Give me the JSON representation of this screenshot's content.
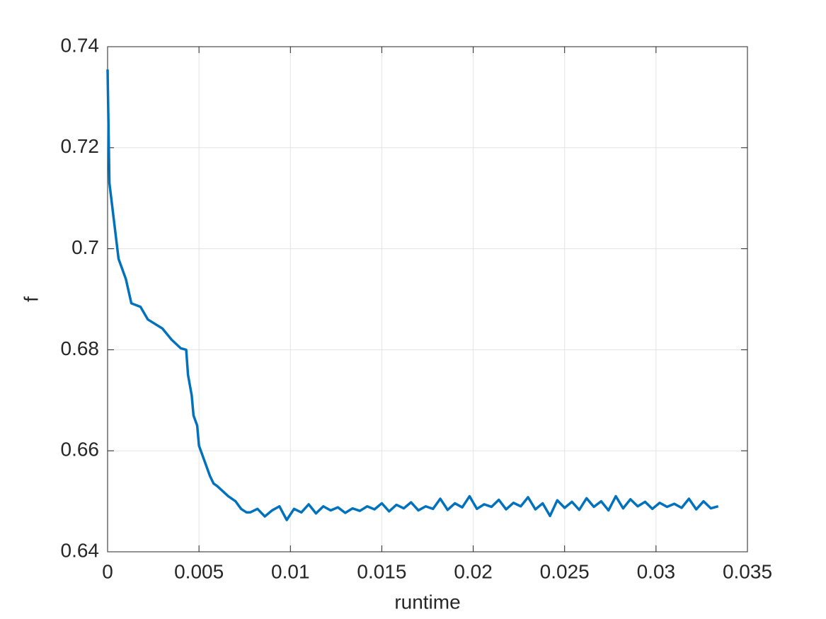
{
  "chart_data": {
    "type": "line",
    "xlabel": "runtime",
    "ylabel": "f",
    "x": [
      0,
      0.0001,
      0.0002,
      0.0006,
      0.001,
      0.0013,
      0.0018,
      0.0022,
      0.003,
      0.0035,
      0.004,
      0.0043,
      0.0044,
      0.0046,
      0.0047,
      0.0049,
      0.005,
      0.0052,
      0.0054,
      0.0056,
      0.0058,
      0.006,
      0.0063,
      0.0066,
      0.007,
      0.0073,
      0.0076,
      0.0078,
      0.0082,
      0.0086,
      0.009,
      0.0094,
      0.0098,
      0.0102,
      0.0106,
      0.011,
      0.0114,
      0.0118,
      0.0122,
      0.0126,
      0.013,
      0.0134,
      0.0138,
      0.0142,
      0.0146,
      0.015,
      0.0154,
      0.0158,
      0.0162,
      0.0166,
      0.017,
      0.0174,
      0.0178,
      0.0182,
      0.0186,
      0.019,
      0.0194,
      0.0198,
      0.0202,
      0.0206,
      0.021,
      0.0214,
      0.0218,
      0.0222,
      0.0226,
      0.023,
      0.0234,
      0.0238,
      0.0242,
      0.0246,
      0.025,
      0.0254,
      0.0258,
      0.0262,
      0.0266,
      0.027,
      0.0274,
      0.0278,
      0.0282,
      0.0286,
      0.029,
      0.0294,
      0.0298,
      0.0302,
      0.0306,
      0.031,
      0.0314,
      0.0318,
      0.0322,
      0.0326,
      0.033,
      0.0334
    ],
    "series": [
      {
        "color": "#0072bd",
        "values": [
          0.7355,
          0.713,
          0.71,
          0.698,
          0.694,
          0.6892,
          0.6885,
          0.686,
          0.6842,
          0.682,
          0.6803,
          0.68,
          0.675,
          0.671,
          0.667,
          0.665,
          0.661,
          0.659,
          0.657,
          0.655,
          0.6535,
          0.653,
          0.652,
          0.651,
          0.65,
          0.6485,
          0.6478,
          0.6478,
          0.6485,
          0.647,
          0.6482,
          0.649,
          0.6463,
          0.6485,
          0.6478,
          0.6494,
          0.6476,
          0.649,
          0.6482,
          0.6488,
          0.6477,
          0.6486,
          0.6481,
          0.649,
          0.6484,
          0.6496,
          0.648,
          0.6493,
          0.6486,
          0.6498,
          0.6482,
          0.649,
          0.6485,
          0.6505,
          0.6483,
          0.6496,
          0.6488,
          0.651,
          0.6485,
          0.6494,
          0.6489,
          0.6503,
          0.6484,
          0.6497,
          0.649,
          0.6508,
          0.6484,
          0.6496,
          0.6471,
          0.6502,
          0.6487,
          0.6499,
          0.6483,
          0.6506,
          0.6489,
          0.65,
          0.6482,
          0.651,
          0.6486,
          0.6504,
          0.649,
          0.6499,
          0.6485,
          0.6497,
          0.6489,
          0.6495,
          0.6487,
          0.6505,
          0.6484,
          0.65,
          0.6486,
          0.649
        ]
      }
    ],
    "xlim": [
      0,
      0.035
    ],
    "xticks": [
      0,
      0.005,
      0.01,
      0.015,
      0.02,
      0.025,
      0.03,
      0.035
    ],
    "ylim": [
      0.64,
      0.74
    ],
    "yticks": [
      0.64,
      0.66,
      0.68,
      0.7,
      0.72,
      0.74
    ],
    "grid": true
  }
}
